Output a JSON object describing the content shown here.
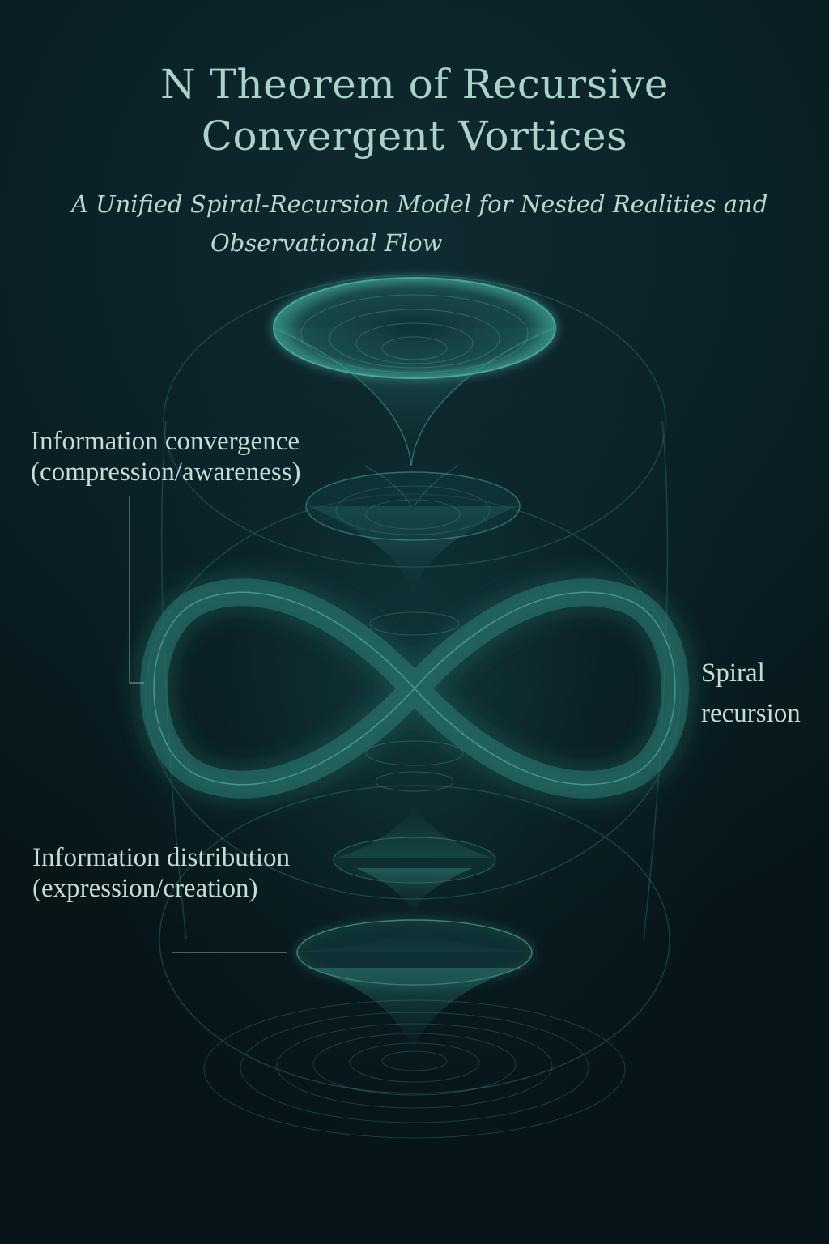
{
  "title": {
    "line1": "N Theorem of Recursive",
    "line2": "Convergent Vortices"
  },
  "subtitle": {
    "line1": "A Unified Spiral-Recursion Model for Nested Realities and",
    "line2": "Observational Flow"
  },
  "labels": {
    "convergence": {
      "line1": "Information convergence",
      "line2": "(compression/awareness)"
    },
    "spiral": {
      "line1": "Spiral",
      "line2": "recursion"
    },
    "distribution": {
      "line1": "Information distribution",
      "line2": "(expression/creation)"
    }
  },
  "colors": {
    "background": "#081a1e",
    "title": "#a9d3c8",
    "label": "#c6dcd6",
    "glow": "#3fa79a",
    "leader_line": "#8fb5ad"
  }
}
